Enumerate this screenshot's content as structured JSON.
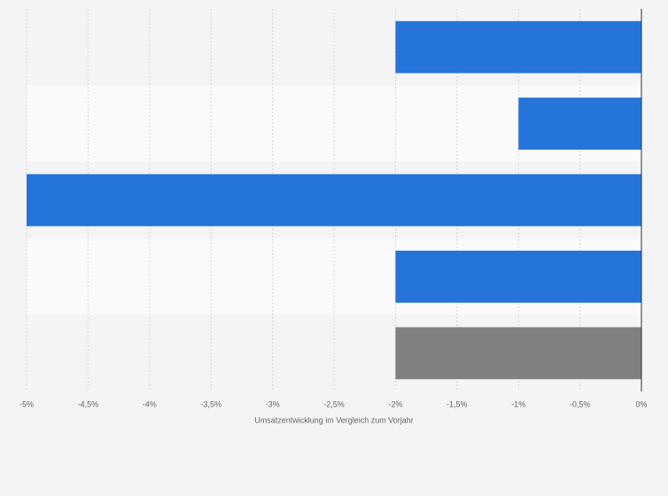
{
  "chart_data": {
    "type": "hbar",
    "categories": [
      null,
      null,
      null,
      null,
      null
    ],
    "values": [
      -2,
      -1,
      -5,
      -2,
      -2
    ],
    "colors": [
      "#2574d9",
      "#2574d9",
      "#2574d9",
      "#2574d9",
      "#808080"
    ],
    "xlabel": "Umsatzentwicklung im Vergleich zum Vorjahr",
    "xlim": [
      -5,
      0
    ],
    "xticks": [
      {
        "value": -5,
        "label": "-5%"
      },
      {
        "value": -4.5,
        "label": "-4,5%"
      },
      {
        "value": -4,
        "label": "-4%"
      },
      {
        "value": -3.5,
        "label": "-3,5%"
      },
      {
        "value": -3,
        "label": "-3%"
      },
      {
        "value": -2.5,
        "label": "-2,5%"
      },
      {
        "value": -2,
        "label": "-2%"
      },
      {
        "value": -1.5,
        "label": "-1,5%"
      },
      {
        "value": -1,
        "label": "-1%"
      },
      {
        "value": -0.5,
        "label": "-0,5%"
      },
      {
        "value": 0,
        "label": "0%"
      }
    ],
    "grid": true
  }
}
